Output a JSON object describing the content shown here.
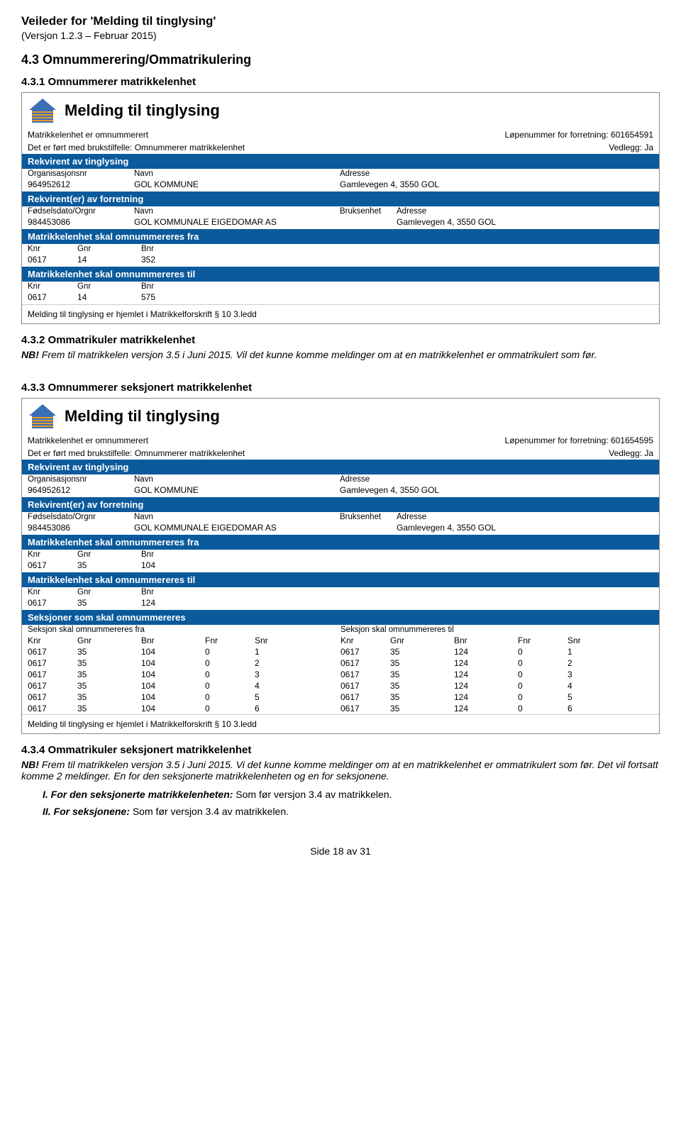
{
  "doc": {
    "title": "Veileder for 'Melding til tinglysing'",
    "version": "(Versjon 1.2.3 – Februar 2015)"
  },
  "headings": {
    "h_4_3": "4.3 Omnummerering/Ommatrikulering",
    "h_4_3_1": "4.3.1 Omnummerer matrikkelenhet",
    "h_4_3_2": "4.3.2 Ommatrikuler matrikkelenhet",
    "nb": "NB!",
    "h_4_3_2_text": "Frem til matrikkelen versjon 3.5 i Juni 2015. Vil det kunne komme meldinger om at en matrikkelenhet er ommatrikulert som før.",
    "h_4_3_3": "4.3.3 Omnummerer seksjonert matrikkelenhet",
    "h_4_3_4": "4.3.4 Ommatrikuler seksjonert matrikkelenhet",
    "h_4_3_4_text": "Frem til matrikkelen versjon 3.5 i Juni 2015. Vi det kunne komme meldinger om at en matrikkelenhet er ommatrikulert som før. Det vil fortsatt komme 2 meldinger. En for den seksjonerte matrikkelenheten og en for seksjonene."
  },
  "notes": {
    "I_label": "I. For den seksjonerte matrikkelenheten:",
    "I_text": " Som før versjon 3.4 av matrikkelen.",
    "II_label": "II. For seksjonene:",
    "II_text": " Som før versjon 3.4 av matrikkelen."
  },
  "panel1": {
    "title": "Melding til tinglysing",
    "meta1_left": "Matrikkelenhet er omnummerert",
    "meta1_right": "Løpenummer for forretning: 601654591",
    "meta2_left": "Det er ført med brukstilfelle: Omnummerer matrikkelenhet",
    "meta2_right": "Vedlegg: Ja",
    "sec_rekv": "Rekvirent av tinglysing",
    "head_org": "Organisasjonsnr",
    "head_navn": "Navn",
    "head_adr": "Adresse",
    "rekv_org": "964952612",
    "rekv_navn": "GOL KOMMUNE",
    "rekv_adr": "Gamlevegen 4, 3550 GOL",
    "sec_rekvf": "Rekvirent(er) av forretning",
    "head_fods": "Fødselsdato/Orgnr",
    "head_bruk": "Bruksenhet",
    "rekvf_org": "984453086",
    "rekvf_navn": "GOL KOMMUNALE EIGEDOMAR AS",
    "rekvf_adr": "Gamlevegen 4, 3550 GOL",
    "sec_fra": "Matrikkelenhet skal omnummereres fra",
    "head_knr": "Knr",
    "head_gnr": "Gnr",
    "head_bnr": "Bnr",
    "fra_knr": "0617",
    "fra_gnr": "14",
    "fra_bnr": "352",
    "sec_til": "Matrikkelenhet skal omnummereres til",
    "til_knr": "0617",
    "til_gnr": "14",
    "til_bnr": "575",
    "footnote": "Melding til tinglysing er hjemlet i Matrikkelforskrift § 10 3.ledd"
  },
  "panel2": {
    "title": "Melding til tinglysing",
    "meta1_left": "Matrikkelenhet er omnummerert",
    "meta1_right": "Løpenummer for forretning: 601654595",
    "meta2_left": "Det er ført med brukstilfelle: Omnummerer matrikkelenhet",
    "meta2_right": "Vedlegg: Ja",
    "sec_rekv": "Rekvirent av tinglysing",
    "head_org": "Organisasjonsnr",
    "head_navn": "Navn",
    "head_adr": "Adresse",
    "rekv_org": "964952612",
    "rekv_navn": "GOL KOMMUNE",
    "rekv_adr": "Gamlevegen 4, 3550 GOL",
    "sec_rekvf": "Rekvirent(er) av forretning",
    "head_fods": "Fødselsdato/Orgnr",
    "head_bruk": "Bruksenhet",
    "rekvf_org": "984453086",
    "rekvf_navn": "GOL KOMMUNALE EIGEDOMAR AS",
    "rekvf_adr": "Gamlevegen 4, 3550 GOL",
    "sec_fra": "Matrikkelenhet skal omnummereres fra",
    "head_knr": "Knr",
    "head_gnr": "Gnr",
    "head_bnr": "Bnr",
    "fra_knr": "0617",
    "fra_gnr": "35",
    "fra_bnr": "104",
    "sec_til": "Matrikkelenhet skal omnummereres til",
    "til_knr": "0617",
    "til_gnr": "35",
    "til_bnr": "124",
    "sec_seks": "Seksjoner som skal omnummereres",
    "label_fra": "Seksjon skal omnummereres fra",
    "label_til": "Seksjon skal omnummereres til",
    "head_fnr": "Fnr",
    "head_snr": "Snr",
    "seks": [
      {
        "f_knr": "0617",
        "f_gnr": "35",
        "f_bnr": "104",
        "f_fnr": "0",
        "f_snr": "1",
        "t_knr": "0617",
        "t_gnr": "35",
        "t_bnr": "124",
        "t_fnr": "0",
        "t_snr": "1"
      },
      {
        "f_knr": "0617",
        "f_gnr": "35",
        "f_bnr": "104",
        "f_fnr": "0",
        "f_snr": "2",
        "t_knr": "0617",
        "t_gnr": "35",
        "t_bnr": "124",
        "t_fnr": "0",
        "t_snr": "2"
      },
      {
        "f_knr": "0617",
        "f_gnr": "35",
        "f_bnr": "104",
        "f_fnr": "0",
        "f_snr": "3",
        "t_knr": "0617",
        "t_gnr": "35",
        "t_bnr": "124",
        "t_fnr": "0",
        "t_snr": "3"
      },
      {
        "f_knr": "0617",
        "f_gnr": "35",
        "f_bnr": "104",
        "f_fnr": "0",
        "f_snr": "4",
        "t_knr": "0617",
        "t_gnr": "35",
        "t_bnr": "124",
        "t_fnr": "0",
        "t_snr": "4"
      },
      {
        "f_knr": "0617",
        "f_gnr": "35",
        "f_bnr": "104",
        "f_fnr": "0",
        "f_snr": "5",
        "t_knr": "0617",
        "t_gnr": "35",
        "t_bnr": "124",
        "t_fnr": "0",
        "t_snr": "5"
      },
      {
        "f_knr": "0617",
        "f_gnr": "35",
        "f_bnr": "104",
        "f_fnr": "0",
        "f_snr": "6",
        "t_knr": "0617",
        "t_gnr": "35",
        "t_bnr": "124",
        "t_fnr": "0",
        "t_snr": "6"
      }
    ],
    "footnote": "Melding til tinglysing er hjemlet i Matrikkelforskrift § 10 3.ledd"
  },
  "footer": {
    "page": "Side 18 av 31"
  },
  "style": {
    "bar_color": "#0a5a9c",
    "logo_fill": "#3b6fb5",
    "logo_stripe": "#e59a2e"
  }
}
